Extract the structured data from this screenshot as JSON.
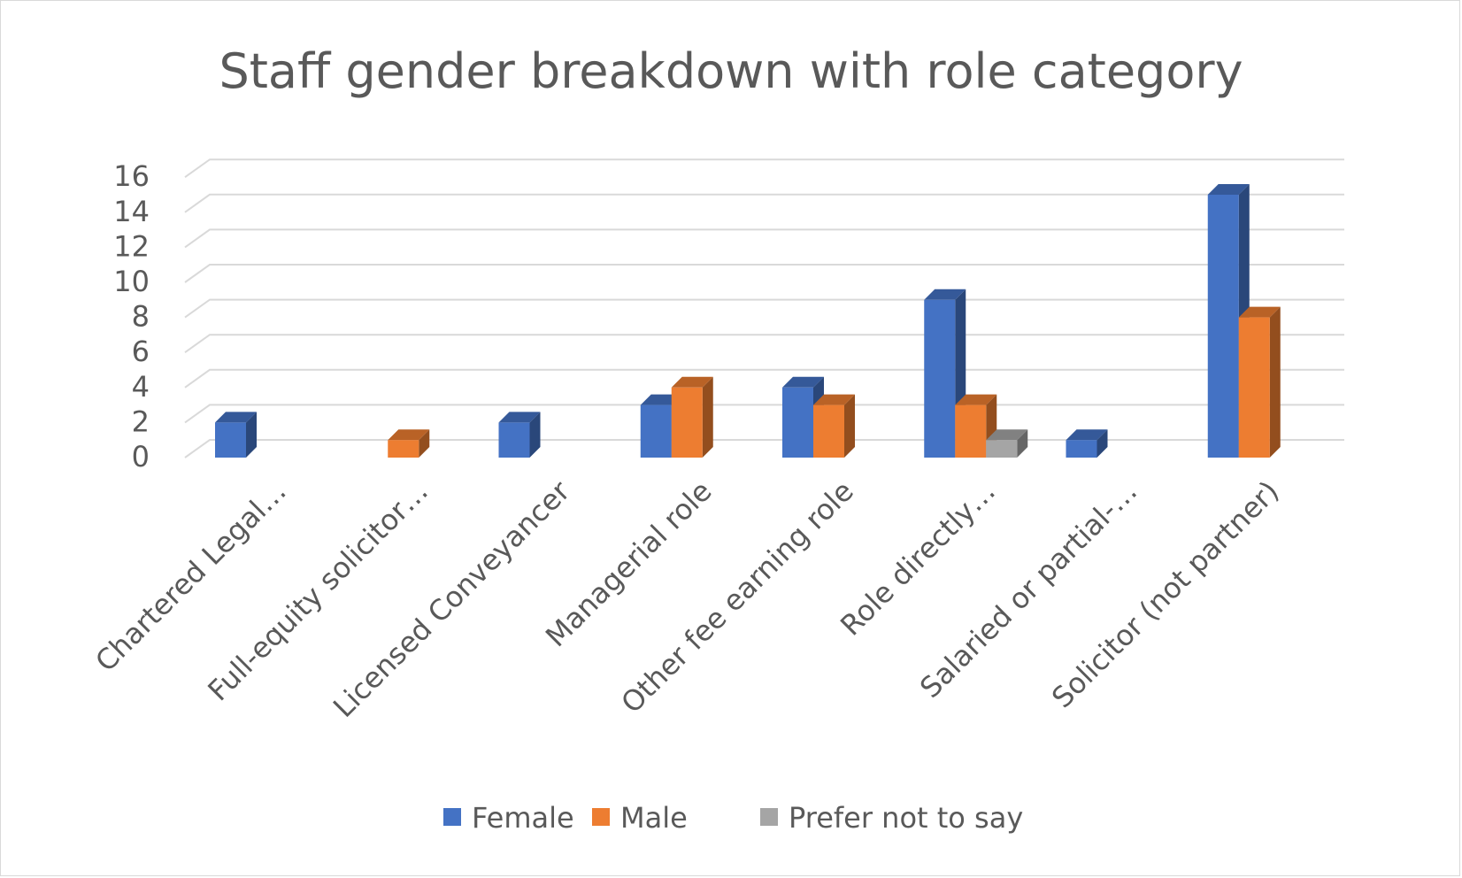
{
  "chart_data": {
    "type": "bar",
    "title": "Staff gender breakdown with role category",
    "categories": [
      "Chartered Legal…",
      "Full-equity solicitor…",
      "Licensed Conveyancer",
      "Managerial role",
      "Other fee earning role",
      "Role directly…",
      "Salaried or partial-…",
      "Solicitor (not partner)"
    ],
    "series": [
      {
        "name": "Female",
        "values": [
          2,
          0,
          2,
          3,
          4,
          9,
          1,
          15
        ],
        "color": "#4472c4"
      },
      {
        "name": "Male",
        "values": [
          0,
          1,
          0,
          4,
          3,
          3,
          0,
          8
        ],
        "color": "#ed7d31"
      },
      {
        "name": "Prefer not to say",
        "values": [
          0,
          0,
          0,
          0,
          0,
          1,
          0,
          0
        ],
        "color": "#a5a5a5"
      }
    ],
    "yticks": [
      "0",
      "2",
      "4",
      "6",
      "8",
      "10",
      "12",
      "14",
      "16"
    ],
    "ylim": [
      0,
      16
    ],
    "grid": true,
    "three_d": true,
    "legend_position": "bottom"
  }
}
